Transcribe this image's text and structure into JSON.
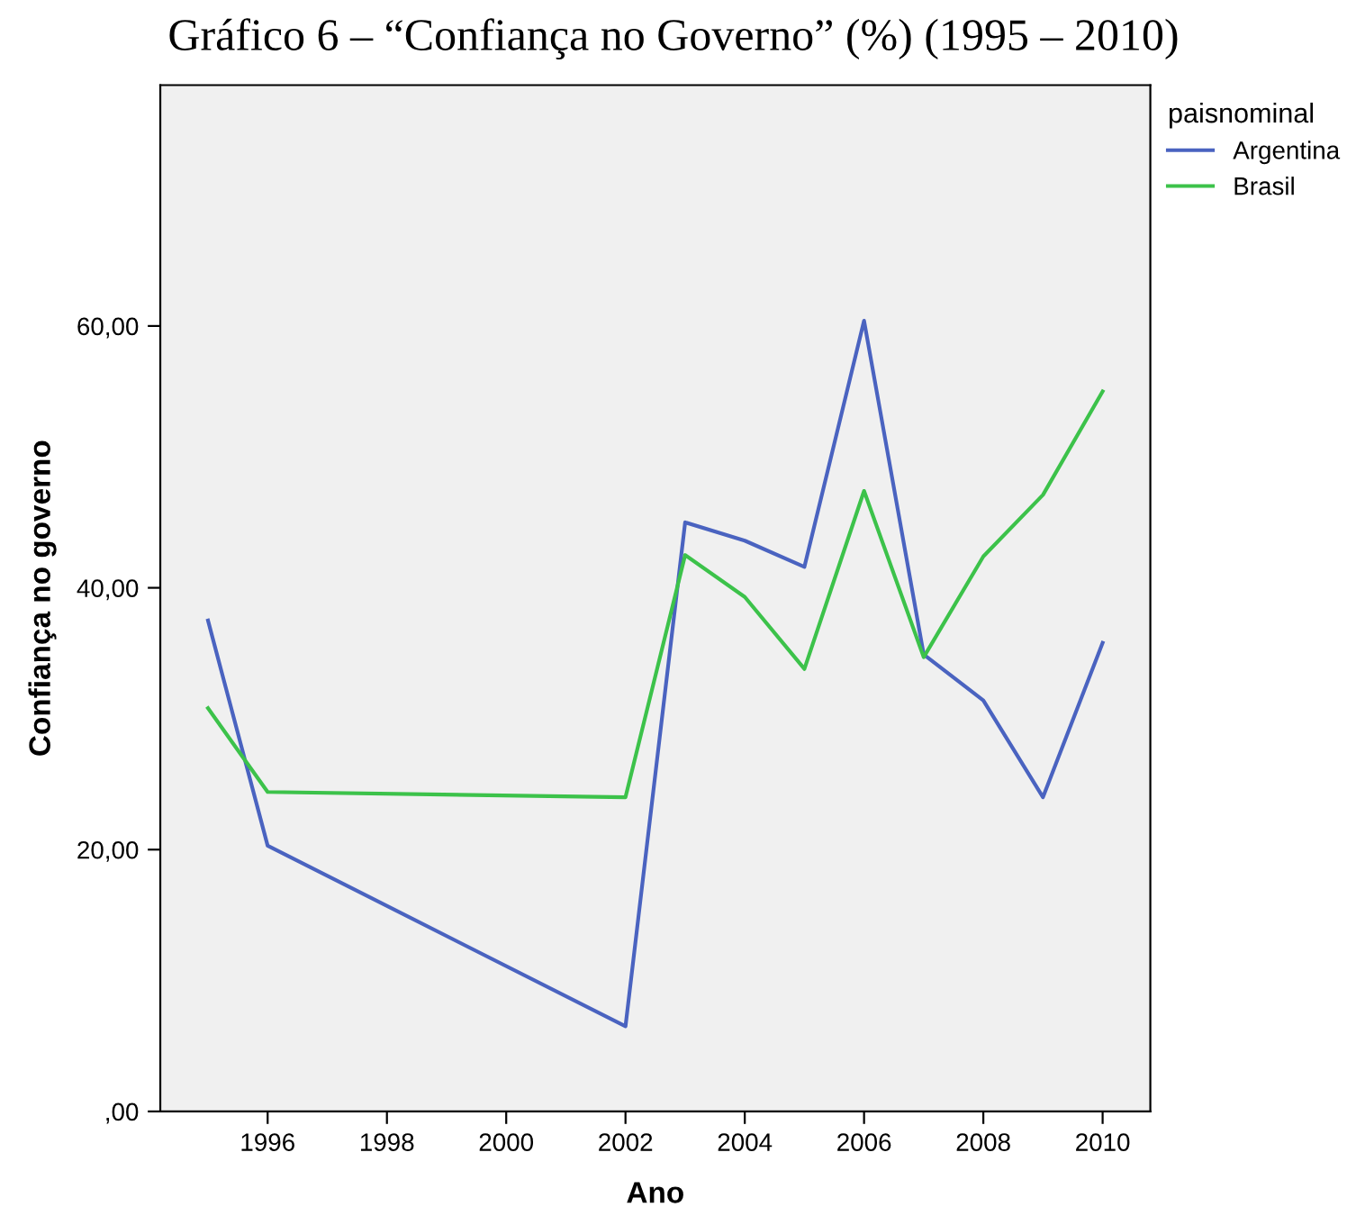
{
  "chart_data": {
    "type": "line",
    "title": "Gráfico 6 – “Confiança no Governo” (%) (1995 – 2010)",
    "xlabel": "Ano",
    "ylabel": "Confiança no governo",
    "legend_title": "paisnominal",
    "legend": "top right",
    "x": [
      1995,
      1996,
      2002,
      2003,
      2004,
      2005,
      2006,
      2007,
      2008,
      2009,
      2010
    ],
    "series": [
      {
        "name": "Argentina",
        "color": "#4a63c0",
        "values": [
          37.5,
          20.3,
          6.5,
          45.0,
          43.6,
          41.6,
          60.4,
          34.9,
          31.4,
          24.0,
          35.8
        ]
      },
      {
        "name": "Brasil",
        "color": "#3cc24a",
        "values": [
          30.8,
          24.4,
          24.0,
          42.5,
          39.3,
          33.8,
          47.4,
          34.7,
          42.4,
          47.1,
          55.0
        ]
      }
    ],
    "xlim": [
      1994.2,
      2010.8
    ],
    "xticks": [
      1996,
      1998,
      2000,
      2002,
      2004,
      2006,
      2008,
      2010
    ],
    "ylim": [
      0,
      78.4
    ],
    "yticks": [
      {
        "value": 0,
        "label": ",00"
      },
      {
        "value": 20,
        "label": "20,00"
      },
      {
        "value": 40,
        "label": "40,00"
      },
      {
        "value": 60,
        "label": "60,00"
      }
    ],
    "grid": false,
    "marker": "none",
    "line_style": "solid"
  }
}
